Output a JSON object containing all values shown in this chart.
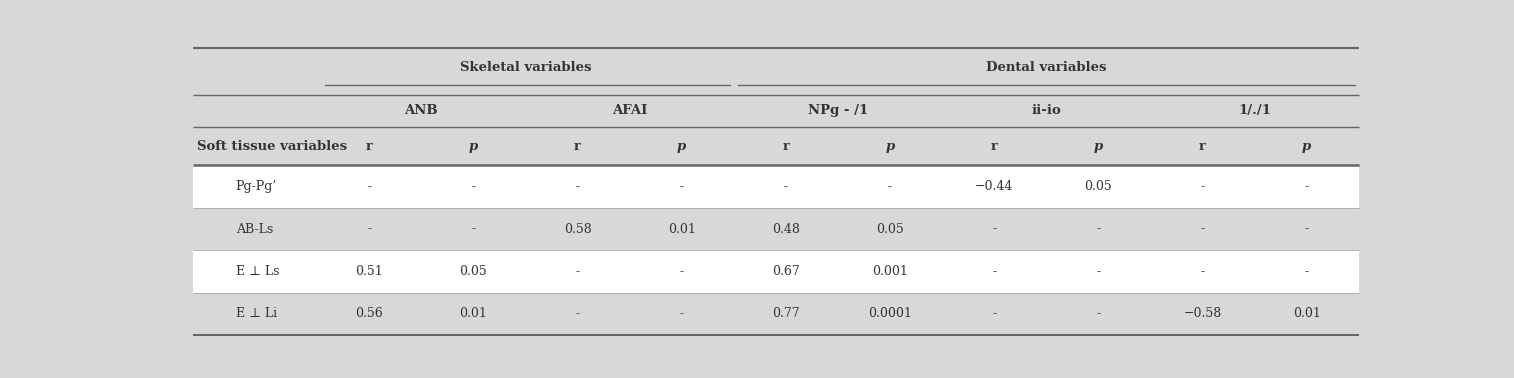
{
  "skeletal_header": "Skeletal variables",
  "dental_header": "Dental variables",
  "sub_headers": [
    "ANB",
    "AFAI",
    "NPg - /1",
    "ii-io",
    "1/./1"
  ],
  "col_headers": [
    "r",
    "p",
    "r",
    "p",
    "r",
    "p",
    "r",
    "p",
    "r",
    "p"
  ],
  "row_labels": [
    "Pg-Pg’",
    "AB-Ls",
    "E ⊥ Ls",
    "E ⊥ Li"
  ],
  "data": [
    [
      "-",
      "-",
      "-",
      "-",
      "-",
      "-",
      "−0.44",
      "0.05",
      "-",
      "-"
    ],
    [
      "-",
      "-",
      "0.58",
      "0.01",
      "0.48",
      "0.05",
      "-",
      "-",
      "-",
      "-"
    ],
    [
      "0.51",
      "0.05",
      "-",
      "-",
      "0.67",
      "0.001",
      "-",
      "-",
      "-",
      "-"
    ],
    [
      "0.56",
      "0.01",
      "-",
      "-",
      "0.77",
      "0.0001",
      "-",
      "-",
      "−0.58",
      "0.01"
    ]
  ],
  "bg_gray": "#d8d8d8",
  "bg_white": "#ffffff",
  "text_color": "#333333",
  "line_color": "#666666",
  "font_size": 9.0,
  "header_font_size": 9.5
}
